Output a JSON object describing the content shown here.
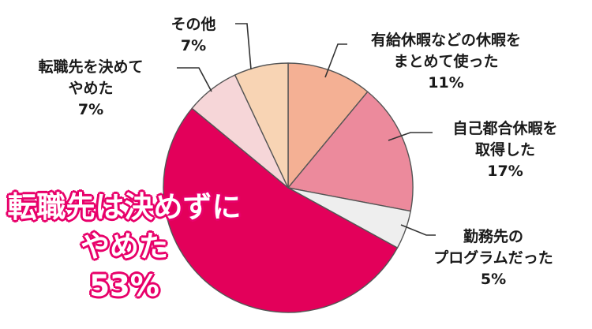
{
  "chart_data": {
    "type": "pie",
    "start_angle_deg": 0,
    "direction": "clockwise",
    "series": [
      {
        "slices": [
          {
            "lines": [
              "有給休暇などの休暇を",
              "まとめて使った"
            ],
            "value": 11,
            "value_label": "11%",
            "color": "#f4b094"
          },
          {
            "lines": [
              "自己都合休暇を",
              "取得した"
            ],
            "value": 17,
            "value_label": "17%",
            "color": "#ec8a9c"
          },
          {
            "lines": [
              "勤務先の",
              "プログラムだった"
            ],
            "value": 5,
            "value_label": "5%",
            "color": "#eeeeee"
          },
          {
            "lines": [
              "転職先は決めずに",
              "やめた"
            ],
            "value": 53,
            "value_label": "53%",
            "color": "#e3005a"
          },
          {
            "lines": [
              "転職先を決めて",
              "やめた"
            ],
            "value": 7,
            "value_label": "7%",
            "color": "#f6d6d8"
          },
          {
            "lines": [
              "その他"
            ],
            "value": 7,
            "value_label": "7%",
            "color": "#f8d4b4"
          }
        ]
      }
    ]
  }
}
